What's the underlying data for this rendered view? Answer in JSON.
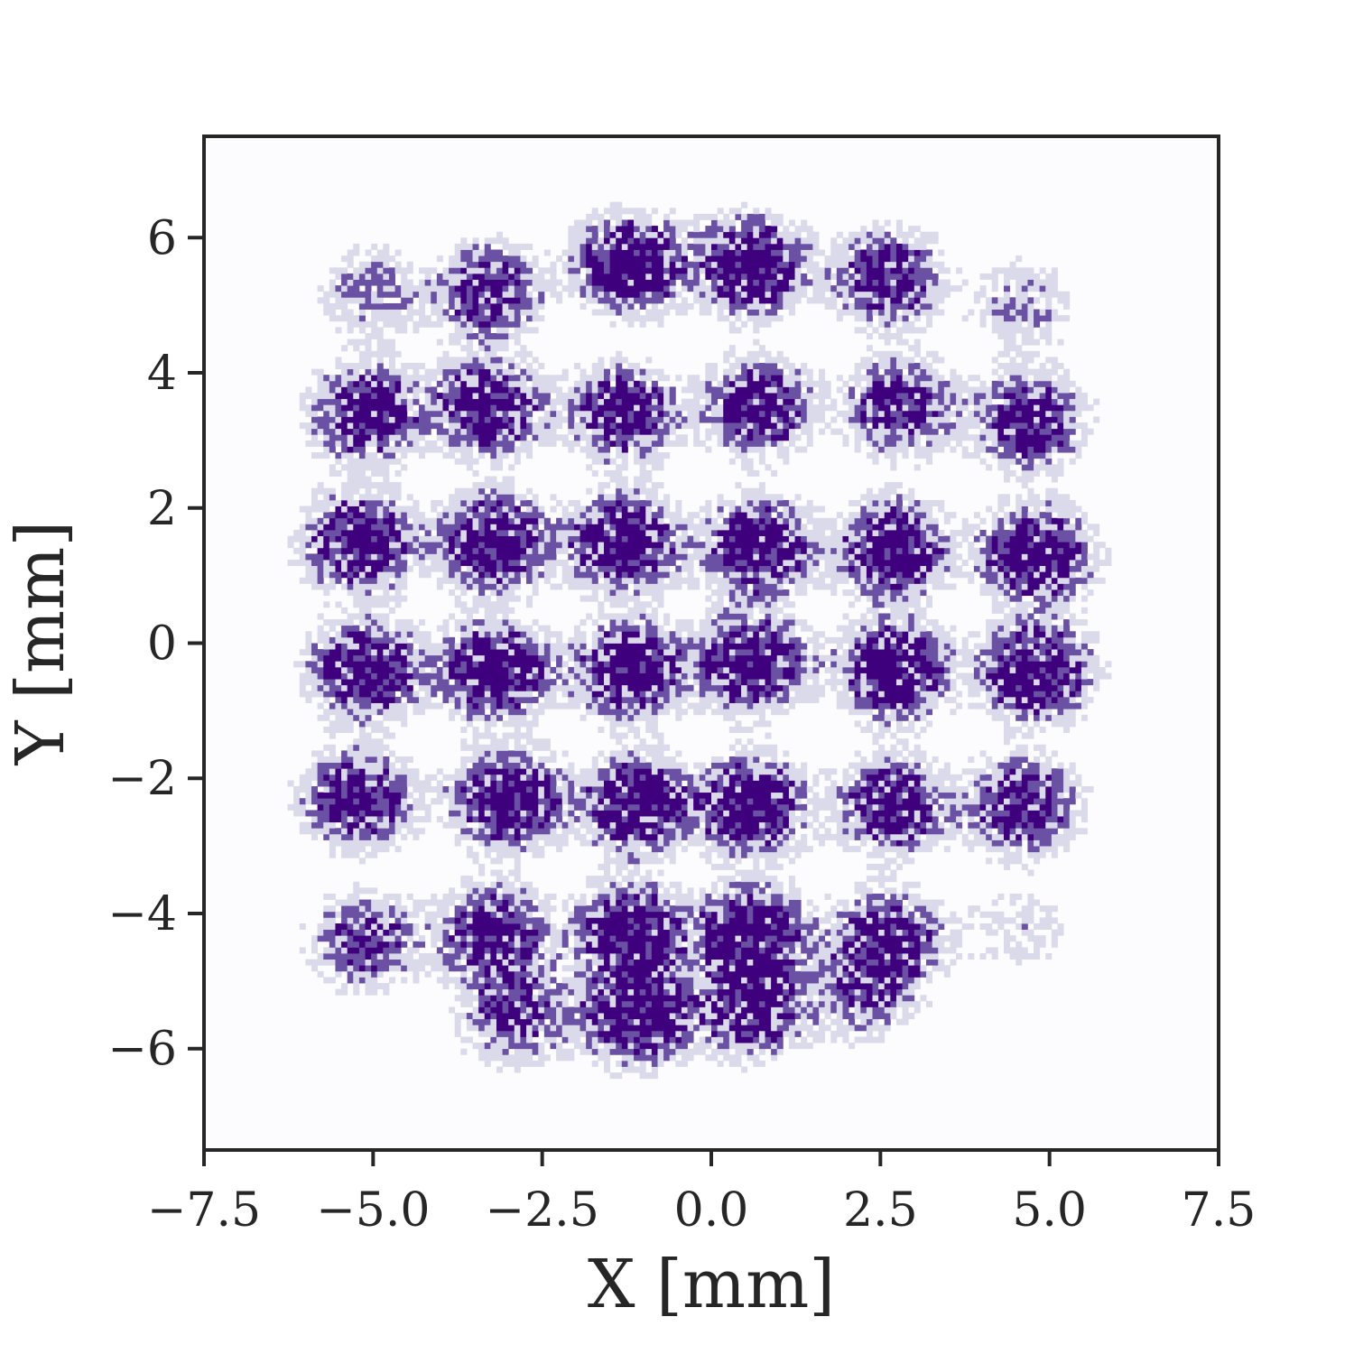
{
  "chart_data": {
    "type": "heatmap",
    "title": "",
    "xlabel": "X [mm]",
    "ylabel": "Y [mm]",
    "xlim": [
      -7.5,
      7.5
    ],
    "ylim": [
      -7.5,
      7.5
    ],
    "x_ticks": [
      -7.5,
      -5.0,
      -2.5,
      0.0,
      2.5,
      5.0,
      7.5
    ],
    "x_tick_labels": [
      "−7.5",
      "−5.0",
      "−2.5",
      "0.0",
      "2.5",
      "5.0",
      "7.5"
    ],
    "y_ticks": [
      -6,
      -4,
      -2,
      0,
      2,
      4,
      6
    ],
    "y_tick_labels": [
      "−6",
      "−4",
      "−2",
      "0",
      "2",
      "4",
      "6"
    ],
    "grid": false,
    "colormap": "Purples",
    "colors": {
      "high": "#3f007d",
      "mid": "#6a51a3",
      "low": "#dadaeb",
      "background": "#fcfbfd",
      "axes": "#262626"
    },
    "spots": [
      {
        "x": -5.0,
        "y": 5.2,
        "intensity": 0.35
      },
      {
        "x": -3.3,
        "y": 5.2,
        "intensity": 0.7
      },
      {
        "x": -1.2,
        "y": 5.6,
        "intensity": 1.0
      },
      {
        "x": 0.6,
        "y": 5.6,
        "intensity": 1.0
      },
      {
        "x": 2.6,
        "y": 5.4,
        "intensity": 0.75
      },
      {
        "x": 4.6,
        "y": 5.0,
        "intensity": 0.3
      },
      {
        "x": -5.1,
        "y": 3.4,
        "intensity": 0.9
      },
      {
        "x": -3.3,
        "y": 3.5,
        "intensity": 0.9
      },
      {
        "x": -1.3,
        "y": 3.4,
        "intensity": 0.85
      },
      {
        "x": 0.7,
        "y": 3.5,
        "intensity": 0.85
      },
      {
        "x": 2.8,
        "y": 3.5,
        "intensity": 0.75
      },
      {
        "x": 4.7,
        "y": 3.3,
        "intensity": 0.8
      },
      {
        "x": -5.2,
        "y": 1.5,
        "intensity": 1.0
      },
      {
        "x": -3.2,
        "y": 1.5,
        "intensity": 1.0
      },
      {
        "x": -1.3,
        "y": 1.5,
        "intensity": 1.0
      },
      {
        "x": 0.7,
        "y": 1.4,
        "intensity": 1.0
      },
      {
        "x": 2.7,
        "y": 1.4,
        "intensity": 1.0
      },
      {
        "x": 4.8,
        "y": 1.3,
        "intensity": 1.0
      },
      {
        "x": -5.1,
        "y": -0.4,
        "intensity": 1.0
      },
      {
        "x": -3.2,
        "y": -0.4,
        "intensity": 1.0
      },
      {
        "x": -1.2,
        "y": -0.4,
        "intensity": 1.0
      },
      {
        "x": 0.6,
        "y": -0.3,
        "intensity": 1.0
      },
      {
        "x": 2.7,
        "y": -0.4,
        "intensity": 1.0
      },
      {
        "x": 4.8,
        "y": -0.4,
        "intensity": 1.0
      },
      {
        "x": -5.2,
        "y": -2.3,
        "intensity": 0.85
      },
      {
        "x": -3.0,
        "y": -2.3,
        "intensity": 1.0
      },
      {
        "x": -1.1,
        "y": -2.4,
        "intensity": 1.0
      },
      {
        "x": 0.6,
        "y": -2.4,
        "intensity": 1.0
      },
      {
        "x": 2.7,
        "y": -2.4,
        "intensity": 0.85
      },
      {
        "x": 4.6,
        "y": -2.4,
        "intensity": 0.8
      },
      {
        "x": -5.1,
        "y": -4.4,
        "intensity": 0.6
      },
      {
        "x": -3.2,
        "y": -4.3,
        "intensity": 0.85
      },
      {
        "x": -1.2,
        "y": -4.3,
        "intensity": 1.0
      },
      {
        "x": 0.6,
        "y": -4.3,
        "intensity": 1.0
      },
      {
        "x": 2.6,
        "y": -4.4,
        "intensity": 0.85
      },
      {
        "x": 4.5,
        "y": -4.2,
        "intensity": 0.2
      },
      {
        "x": -2.9,
        "y": -5.5,
        "intensity": 0.6
      },
      {
        "x": -1.1,
        "y": -5.5,
        "intensity": 1.0
      },
      {
        "x": 0.6,
        "y": -5.4,
        "intensity": 0.85
      },
      {
        "x": 2.2,
        "y": -5.2,
        "intensity": 0.4
      }
    ]
  }
}
